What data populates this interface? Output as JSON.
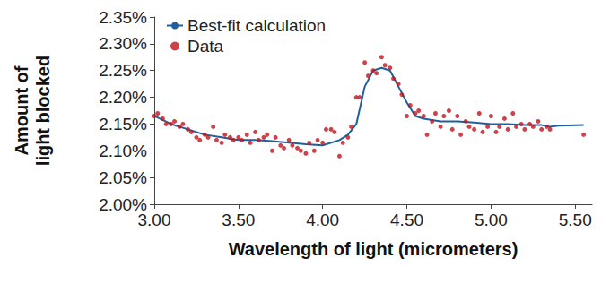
{
  "chart_data": {
    "type": "scatter",
    "x_label": "Wavelength of light (micrometers)",
    "y_label": "Amount of\nlight blocked",
    "xlim": [
      3.0,
      5.6
    ],
    "xticks": [
      {
        "value": 3.0,
        "label": "3.00"
      },
      {
        "value": 3.5,
        "label": "3.50"
      },
      {
        "value": 4.0,
        "label": "4.00"
      },
      {
        "value": 4.5,
        "label": "4.50"
      },
      {
        "value": 5.0,
        "label": "5.00"
      },
      {
        "value": 5.5,
        "label": "5.50"
      }
    ],
    "ylim": [
      2.0,
      2.35
    ],
    "yticks": [
      {
        "value": 2.0,
        "label": "2.00%"
      },
      {
        "value": 2.05,
        "label": "2.05%"
      },
      {
        "value": 2.1,
        "label": "2.10%"
      },
      {
        "value": 2.15,
        "label": "2.15%"
      },
      {
        "value": 2.2,
        "label": "2.20%"
      },
      {
        "value": 2.25,
        "label": "2.25%"
      },
      {
        "value": 2.3,
        "label": "2.30%"
      },
      {
        "value": 2.35,
        "label": "2.35%"
      }
    ],
    "grid": false,
    "legend": "upper left",
    "series": [
      {
        "name": "Best-fit calculation",
        "type": "line",
        "color": "#1f5f9e",
        "line_style": "solid",
        "x": [
          3.0,
          3.1,
          3.2,
          3.3,
          3.4,
          3.5,
          3.6,
          3.7,
          3.8,
          3.9,
          4.0,
          4.1,
          4.15,
          4.2,
          4.25,
          4.3,
          4.35,
          4.4,
          4.45,
          4.5,
          4.55,
          4.6,
          4.7,
          4.8,
          4.9,
          5.0,
          5.1,
          5.2,
          5.3,
          5.35,
          5.4,
          5.55
        ],
        "values": [
          2.165,
          2.15,
          2.14,
          2.13,
          2.125,
          2.12,
          2.12,
          2.118,
          2.115,
          2.112,
          2.11,
          2.12,
          2.13,
          2.15,
          2.22,
          2.25,
          2.255,
          2.25,
          2.22,
          2.19,
          2.165,
          2.16,
          2.155,
          2.155,
          2.153,
          2.15,
          2.15,
          2.148,
          2.148,
          2.145,
          2.147,
          2.148
        ]
      },
      {
        "name": "Data",
        "type": "scatter",
        "color": "#c0141c",
        "marker": "circle",
        "x": [
          3.0,
          3.02,
          3.05,
          3.07,
          3.1,
          3.12,
          3.15,
          3.17,
          3.2,
          3.22,
          3.25,
          3.27,
          3.3,
          3.32,
          3.35,
          3.37,
          3.4,
          3.42,
          3.45,
          3.47,
          3.5,
          3.52,
          3.55,
          3.57,
          3.6,
          3.62,
          3.65,
          3.67,
          3.7,
          3.72,
          3.75,
          3.77,
          3.8,
          3.82,
          3.85,
          3.87,
          3.9,
          3.92,
          3.95,
          3.97,
          4.0,
          4.02,
          4.05,
          4.07,
          4.1,
          4.12,
          4.15,
          4.17,
          4.2,
          4.22,
          4.25,
          4.27,
          4.3,
          4.32,
          4.35,
          4.37,
          4.4,
          4.42,
          4.45,
          4.47,
          4.5,
          4.52,
          4.55,
          4.57,
          4.6,
          4.62,
          4.65,
          4.67,
          4.7,
          4.72,
          4.75,
          4.77,
          4.8,
          4.82,
          4.85,
          4.87,
          4.9,
          4.93,
          4.95,
          4.98,
          5.0,
          5.03,
          5.05,
          5.08,
          5.1,
          5.13,
          5.15,
          5.18,
          5.2,
          5.23,
          5.25,
          5.28,
          5.3,
          5.33,
          5.35,
          5.55
        ],
        "values": [
          2.165,
          2.17,
          2.16,
          2.15,
          2.15,
          2.155,
          2.145,
          2.15,
          2.14,
          2.135,
          2.125,
          2.12,
          2.13,
          2.125,
          2.145,
          2.12,
          2.115,
          2.13,
          2.125,
          2.12,
          2.125,
          2.12,
          2.13,
          2.115,
          2.135,
          2.12,
          2.125,
          2.13,
          2.1,
          2.125,
          2.11,
          2.105,
          2.12,
          2.11,
          2.105,
          2.1,
          2.095,
          2.115,
          2.1,
          2.12,
          2.115,
          2.14,
          2.14,
          2.135,
          2.09,
          2.115,
          2.125,
          2.145,
          2.2,
          2.2,
          2.265,
          2.24,
          2.25,
          2.245,
          2.275,
          2.26,
          2.255,
          2.235,
          2.225,
          2.205,
          2.165,
          2.185,
          2.17,
          2.175,
          2.165,
          2.13,
          2.155,
          2.17,
          2.145,
          2.165,
          2.175,
          2.14,
          2.165,
          2.13,
          2.155,
          2.145,
          2.14,
          2.17,
          2.135,
          2.145,
          2.165,
          2.135,
          2.145,
          2.16,
          2.14,
          2.17,
          2.145,
          2.15,
          2.14,
          2.15,
          2.145,
          2.155,
          2.14,
          2.145,
          2.14,
          2.13
        ]
      }
    ]
  }
}
